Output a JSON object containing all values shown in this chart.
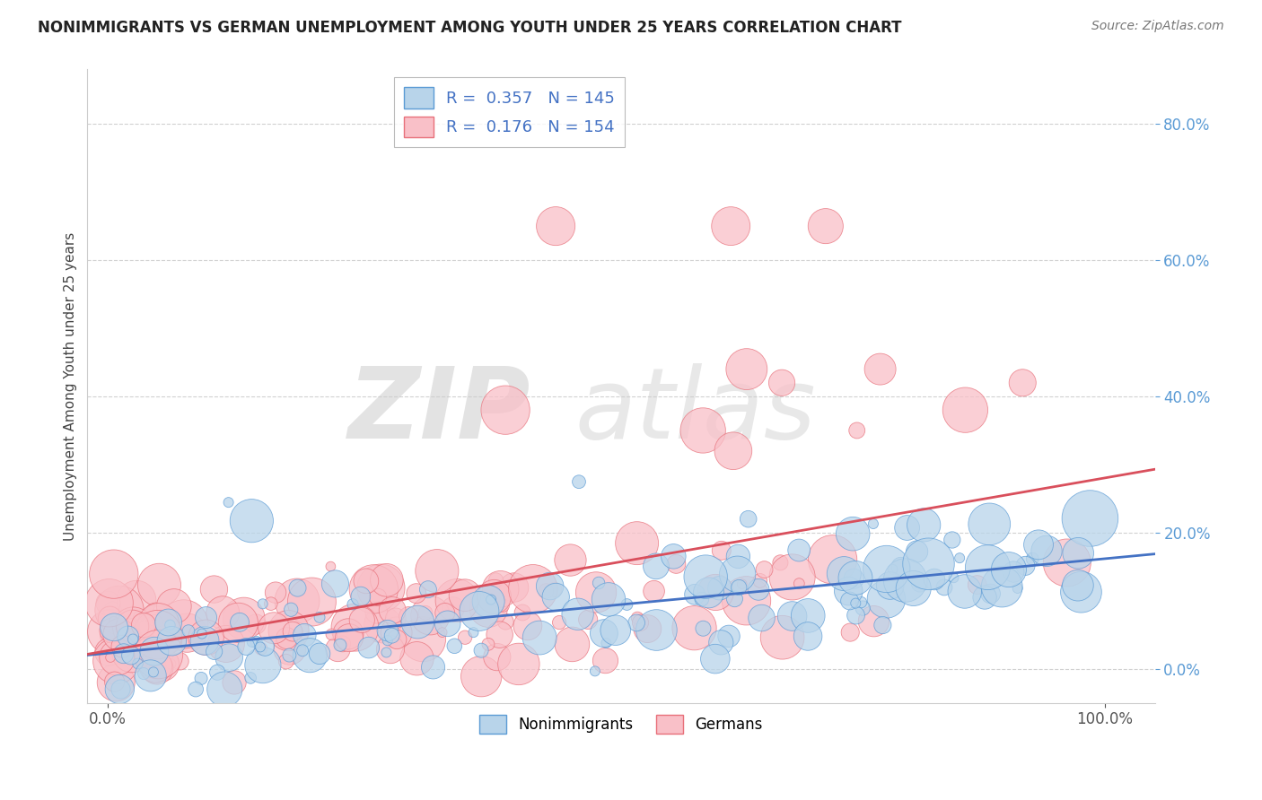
{
  "title": "NONIMMIGRANTS VS GERMAN UNEMPLOYMENT AMONG YOUTH UNDER 25 YEARS CORRELATION CHART",
  "source": "Source: ZipAtlas.com",
  "ylabel": "Unemployment Among Youth under 25 years",
  "ytick_vals": [
    0.0,
    0.2,
    0.4,
    0.6,
    0.8
  ],
  "ytick_labels": [
    "0.0%",
    "20.0%",
    "40.0%",
    "60.0%",
    "80.0%"
  ],
  "xtick_vals": [
    0.0,
    1.0
  ],
  "xtick_labels": [
    "0.0%",
    "100.0%"
  ],
  "blue_fill": "#b8d4ea",
  "blue_edge": "#5b9bd5",
  "pink_fill": "#f9c0c8",
  "pink_edge": "#e8707a",
  "trend_blue": "#4472c4",
  "trend_pink": "#d94f5c",
  "R_blue": 0.357,
  "N_blue": 145,
  "R_pink": 0.176,
  "N_pink": 154,
  "xlim": [
    -0.02,
    1.05
  ],
  "ylim": [
    -0.05,
    0.88
  ],
  "grid_color": "#cccccc",
  "background_color": "#ffffff",
  "tick_color_y": "#5b9bd5",
  "tick_color_x": "#555555",
  "seed": 42
}
